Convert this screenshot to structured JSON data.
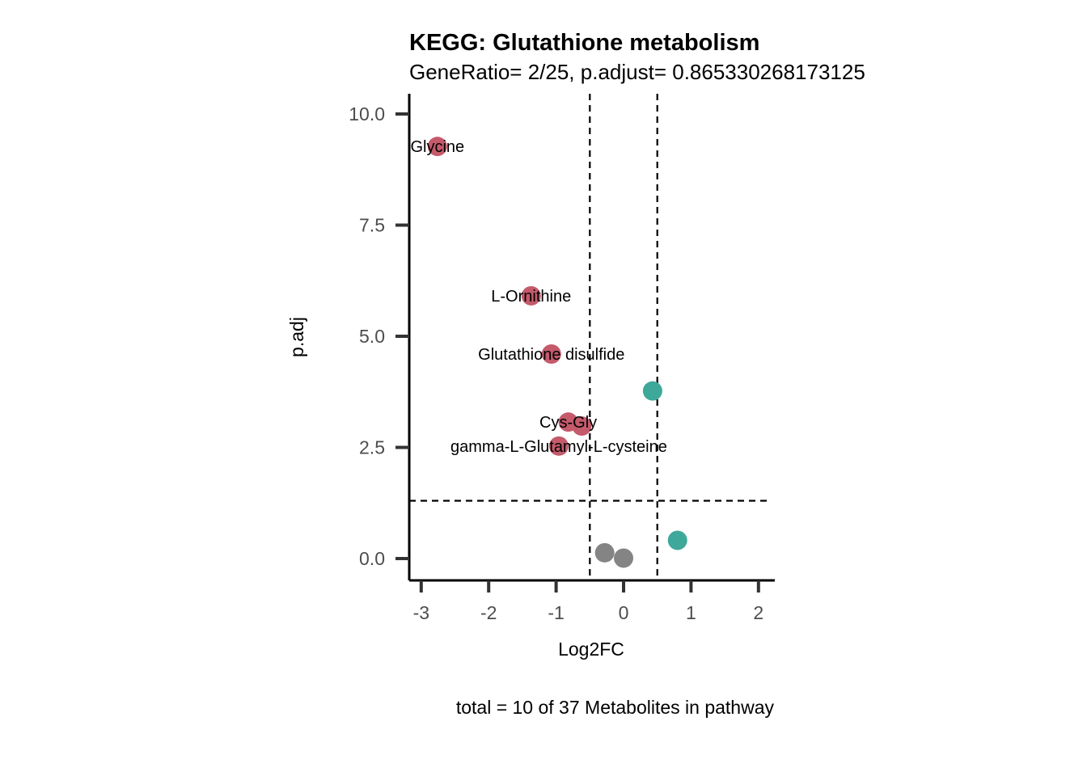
{
  "chart_data": {
    "type": "scatter",
    "title": "KEGG: Glutathione metabolism",
    "subtitle": "GeneRatio= 2/25, p.adjust= 0.865330268173125",
    "caption": "total = 10 of 37 Metabolites in pathway",
    "xlabel": "Log2FC",
    "ylabel": "p.adj",
    "xlim": [
      -3.2,
      2.2
    ],
    "ylim": [
      -0.48,
      10.45
    ],
    "x_ticks": [
      -3,
      -2,
      -1,
      0,
      1,
      2
    ],
    "x_tick_labels": [
      "-3",
      "-2",
      "-1",
      "0",
      "1",
      "2"
    ],
    "y_ticks": [
      0,
      2.5,
      5,
      7.5,
      10
    ],
    "y_tick_labels": [
      "0.0",
      "2.5",
      "5.0",
      "7.5",
      "10.0"
    ],
    "thresholds": {
      "vlines": [
        -0.5,
        0.5
      ],
      "hline": 1.3
    },
    "colors": {
      "down": "#c45a6b",
      "up": "#3ea89a",
      "ns": "#848484"
    },
    "points": [
      {
        "x": -2.76,
        "y": 9.27,
        "group": "down",
        "label": "Glycine"
      },
      {
        "x": -1.37,
        "y": 5.91,
        "group": "down",
        "label": "L-Ornithine"
      },
      {
        "x": -1.07,
        "y": 4.6,
        "group": "down",
        "label": "Glutathione disulfide"
      },
      {
        "x": -0.82,
        "y": 3.07,
        "group": "down",
        "label": "Cys-Gly"
      },
      {
        "x": -0.62,
        "y": 2.98,
        "group": "down",
        "label": ""
      },
      {
        "x": -0.96,
        "y": 2.53,
        "group": "down",
        "label": "gamma-L-Glutamyl-L-cysteine"
      },
      {
        "x": 0.43,
        "y": 3.77,
        "group": "up",
        "label": ""
      },
      {
        "x": 0.8,
        "y": 0.41,
        "group": "up",
        "label": ""
      },
      {
        "x": -0.28,
        "y": 0.13,
        "group": "ns",
        "label": ""
      },
      {
        "x": 0.0,
        "y": 0.01,
        "group": "ns",
        "label": ""
      }
    ]
  }
}
